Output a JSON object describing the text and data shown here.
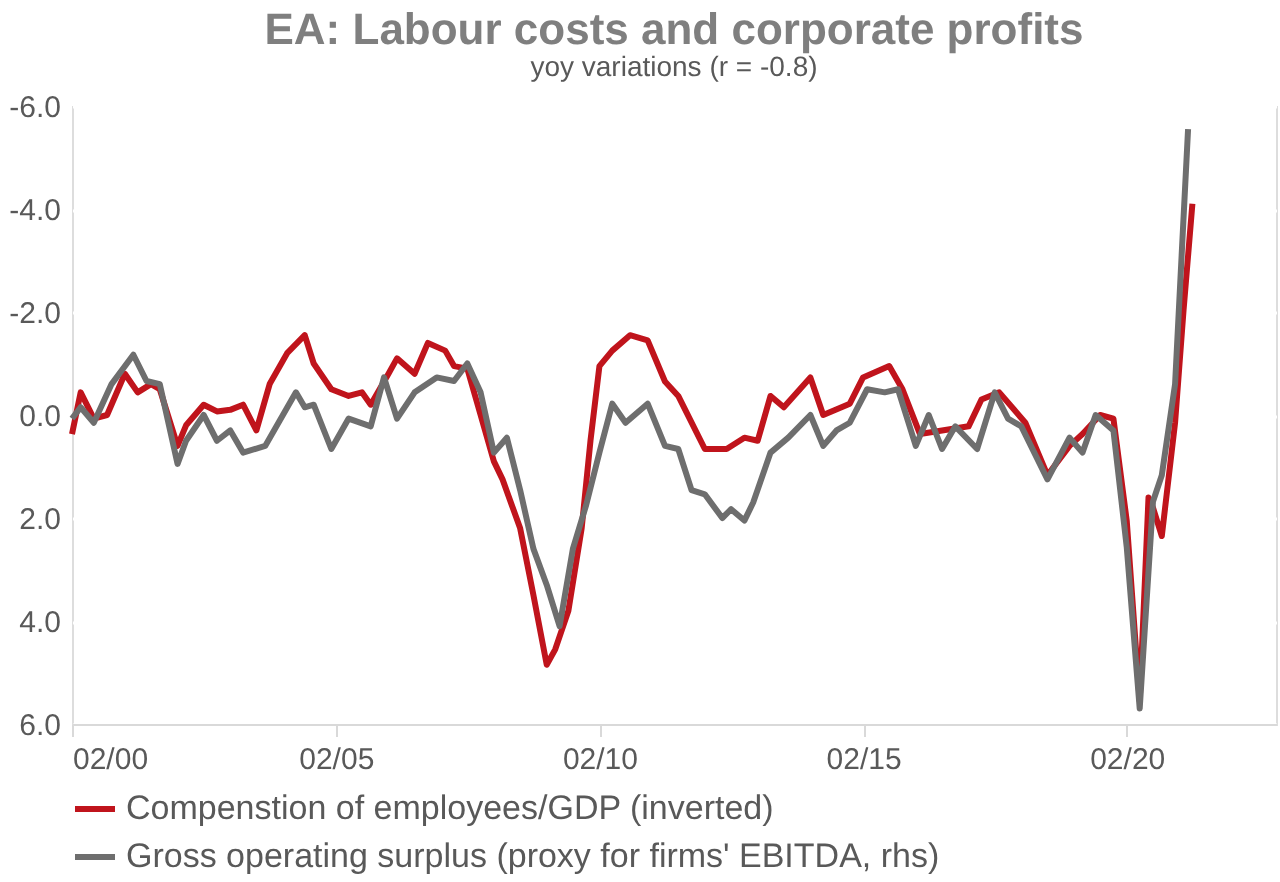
{
  "chart_data": {
    "type": "line",
    "title": "EA: Labour costs and corporate profits",
    "subtitle": "yoy variations    (r = -0.8)",
    "xlim": [
      "2000-02",
      "2022-12"
    ],
    "xticks": [
      {
        "value": "2000-02",
        "label": "02/00"
      },
      {
        "value": "2005-02",
        "label": "02/05"
      },
      {
        "value": "2010-02",
        "label": "02/10"
      },
      {
        "value": "2015-02",
        "label": "02/15"
      },
      {
        "value": "2020-02",
        "label": "02/20"
      }
    ],
    "ylim": [
      6,
      -6
    ],
    "yticks": [
      {
        "value": -6,
        "label": "-6.0"
      },
      {
        "value": -4,
        "label": "-4.0"
      },
      {
        "value": -2,
        "label": "-2.0"
      },
      {
        "value": 0,
        "label": "0.0"
      },
      {
        "value": 2,
        "label": "2.0"
      },
      {
        "value": 4,
        "label": "4.0"
      },
      {
        "value": 6,
        "label": "6.0"
      }
    ],
    "grid": "y",
    "legend": "bottom",
    "marker": "none",
    "line_style": "solid",
    "series": [
      {
        "name": "Compenstion of employees/GDP (inverted)",
        "color": "#c0141c",
        "x": [
          "2000-02",
          "2000-04",
          "2000-07",
          "2000-10",
          "2001-02",
          "2001-05",
          "2001-08",
          "2001-10",
          "2002-02",
          "2002-04",
          "2002-08",
          "2002-11",
          "2003-02",
          "2003-05",
          "2003-08",
          "2003-11",
          "2004-03",
          "2004-07",
          "2004-09",
          "2005-01",
          "2005-05",
          "2005-08",
          "2005-10",
          "2006-02",
          "2006-04",
          "2006-08",
          "2006-11",
          "2007-03",
          "2007-05",
          "2007-08",
          "2007-11",
          "2008-02",
          "2008-04",
          "2008-08",
          "2008-11",
          "2009-02",
          "2009-04",
          "2009-07",
          "2009-10",
          "2009-12",
          "2010-02",
          "2010-05",
          "2010-09",
          "2011-01",
          "2011-05",
          "2011-08",
          "2012-02",
          "2012-07",
          "2012-11",
          "2013-02",
          "2013-05",
          "2013-08",
          "2014-02",
          "2014-05",
          "2014-11",
          "2015-02",
          "2015-08",
          "2015-11",
          "2016-03",
          "2016-08",
          "2017-02",
          "2017-05",
          "2017-09",
          "2018-03",
          "2018-08",
          "2019-01",
          "2019-04",
          "2019-08",
          "2019-11",
          "2020-02",
          "2020-05",
          "2020-07",
          "2020-08",
          "2020-10",
          "2021-01",
          "2021-03",
          "2021-05"
        ],
        "values": [
          0.37,
          -0.44,
          0.07,
          0,
          -0.8,
          -0.44,
          -0.6,
          -0.5,
          0.6,
          0.2,
          -0.2,
          -0.07,
          -0.1,
          -0.2,
          0.3,
          -0.6,
          -1.2,
          -1.55,
          -1.0,
          -0.5,
          -0.37,
          -0.44,
          -0.2,
          -0.8,
          -1.1,
          -0.8,
          -1.4,
          -1.25,
          -0.95,
          -0.9,
          0,
          0.9,
          1.25,
          2.2,
          3.5,
          4.85,
          4.55,
          3.8,
          2.2,
          0.5,
          -0.95,
          -1.25,
          -1.55,
          -1.45,
          -0.65,
          -0.37,
          0.66,
          0.66,
          0.44,
          0.5,
          -0.37,
          -0.15,
          -0.73,
          0,
          -0.22,
          -0.73,
          -0.95,
          -0.5,
          0.37,
          0.3,
          0.22,
          -0.3,
          -0.44,
          0.15,
          1.17,
          0.6,
          0.37,
          0,
          0.07,
          2.05,
          5.55,
          1.6,
          1.8,
          2.35,
          0.15,
          -2.05,
          -4.1
        ]
      },
      {
        "name": "Gross operating surplus (proxy for firms' EBITDA, rhs)",
        "color": "#6e6e6e",
        "x": [
          "2000-02",
          "2000-04",
          "2000-07",
          "2000-11",
          "2001-04",
          "2001-07",
          "2001-10",
          "2002-02",
          "2002-04",
          "2002-08",
          "2002-11",
          "2003-02",
          "2003-05",
          "2003-10",
          "2004-01",
          "2004-05",
          "2004-07",
          "2004-09",
          "2005-01",
          "2005-05",
          "2005-10",
          "2006-01",
          "2006-04",
          "2006-08",
          "2007-01",
          "2007-05",
          "2007-08",
          "2007-11",
          "2008-02",
          "2008-05",
          "2008-08",
          "2008-11",
          "2009-02",
          "2009-05",
          "2009-08",
          "2009-11",
          "2010-02",
          "2010-05",
          "2010-08",
          "2011-01",
          "2011-05",
          "2011-08",
          "2011-11",
          "2012-02",
          "2012-06",
          "2012-08",
          "2012-11",
          "2013-01",
          "2013-05",
          "2013-09",
          "2014-02",
          "2014-05",
          "2014-08",
          "2014-11",
          "2015-03",
          "2015-07",
          "2015-10",
          "2016-02",
          "2016-05",
          "2016-08",
          "2016-11",
          "2017-04",
          "2017-08",
          "2017-11",
          "2018-02",
          "2018-08",
          "2019-01",
          "2019-04",
          "2019-07",
          "2019-11",
          "2020-02",
          "2020-05",
          "2020-08",
          "2020-10",
          "2021-01",
          "2021-04"
        ],
        "values": [
          0.07,
          -0.15,
          0.15,
          -0.6,
          -1.17,
          -0.66,
          -0.6,
          0.95,
          0.5,
          0,
          0.5,
          0.3,
          0.73,
          0.6,
          0.15,
          -0.44,
          -0.15,
          -0.2,
          0.66,
          0.07,
          0.22,
          -0.73,
          0.07,
          -0.44,
          -0.73,
          -0.66,
          -1.0,
          -0.44,
          0.73,
          0.44,
          1.46,
          2.6,
          3.3,
          4.1,
          2.6,
          1.75,
          0.73,
          -0.22,
          0.15,
          -0.22,
          0.6,
          0.66,
          1.46,
          1.54,
          2.0,
          1.83,
          2.05,
          1.7,
          0.73,
          0.44,
          0,
          0.6,
          0.3,
          0.15,
          -0.5,
          -0.44,
          -0.5,
          0.6,
          0,
          0.66,
          0.22,
          0.66,
          -0.44,
          0.07,
          0.22,
          1.25,
          0.44,
          0.73,
          0,
          0.3,
          2.56,
          5.7,
          1.68,
          1.17,
          -0.6,
          -5.55
        ]
      }
    ]
  }
}
